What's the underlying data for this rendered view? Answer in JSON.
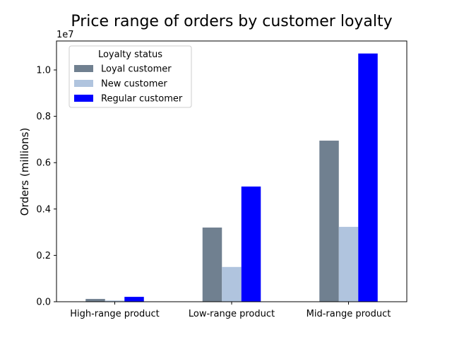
{
  "chart_data": {
    "type": "bar",
    "title": "Price range of orders by customer loyalty",
    "xlabel": "",
    "ylabel": "Orders (millions)",
    "y_offset_label": "1e7",
    "categories": [
      "High-range product",
      "Low-range product",
      "Mid-range product"
    ],
    "series": [
      {
        "name": "Loyal customer",
        "color": "#708090",
        "values": [
          120000,
          3200000,
          6950000
        ]
      },
      {
        "name": "New customer",
        "color": "#b0c4de",
        "values": [
          50000,
          1500000,
          3230000
        ]
      },
      {
        "name": "Regular customer",
        "color": "#0000ff",
        "values": [
          210000,
          4970000,
          10710000
        ]
      }
    ],
    "ylim": [
      0,
      11250000
    ],
    "yticks": [
      {
        "value": 0,
        "label": "0.0"
      },
      {
        "value": 2000000,
        "label": "0.2"
      },
      {
        "value": 4000000,
        "label": "0.4"
      },
      {
        "value": 6000000,
        "label": "0.6"
      },
      {
        "value": 8000000,
        "label": "0.8"
      },
      {
        "value": 10000000,
        "label": "1.0"
      }
    ],
    "legend": {
      "title": "Loyalty status",
      "placement": "top-left"
    },
    "grid": false
  }
}
